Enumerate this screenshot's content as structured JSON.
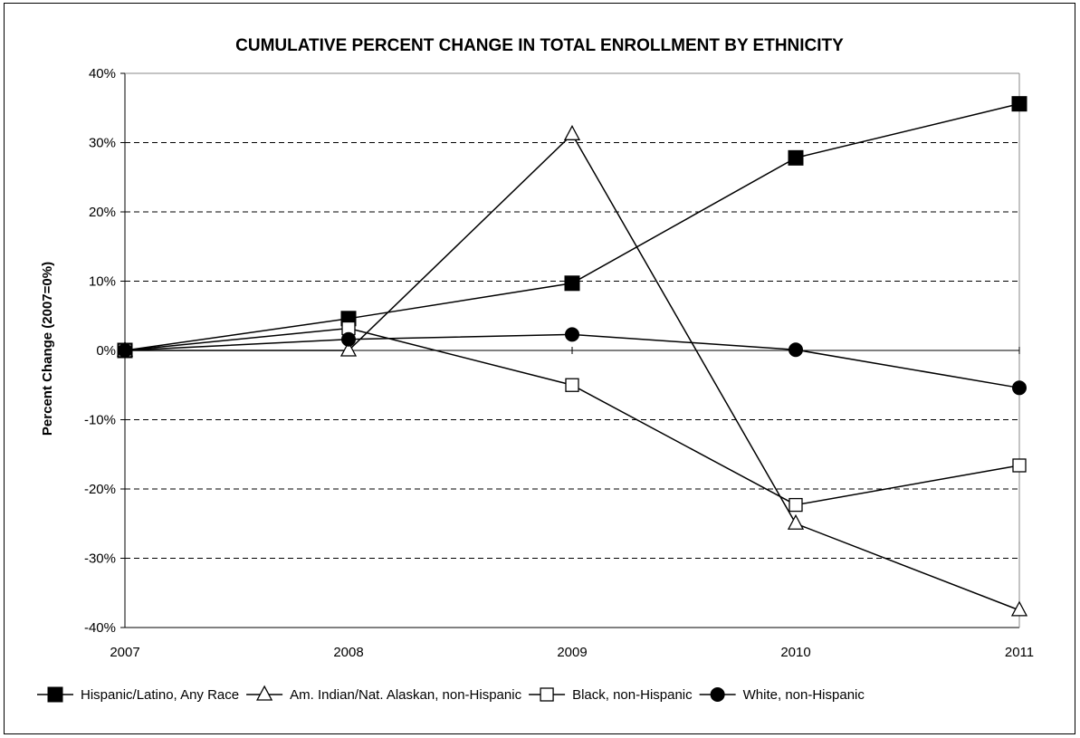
{
  "chart_data": {
    "type": "line",
    "title": "CUMULATIVE PERCENT CHANGE IN TOTAL ENROLLMENT BY ETHNICITY",
    "ylabel": "Percent Change (2007=0%)",
    "x": [
      "2007",
      "2008",
      "2009",
      "2010",
      "2011"
    ],
    "y_ticks": [
      "-40%",
      "-30%",
      "-20%",
      "-10%",
      "0%",
      "10%",
      "20%",
      "30%",
      "40%"
    ],
    "ylim": [
      -40,
      40
    ],
    "grid": "horizontal dashed",
    "legend_position": "bottom",
    "series": [
      {
        "name": "Hispanic/Latino, Any Race",
        "marker": "filled-square",
        "values": [
          0,
          4.6,
          9.7,
          27.8,
          35.6
        ]
      },
      {
        "name": "Am. Indian/Nat. Alaskan, non-Hispanic",
        "marker": "open-triangle",
        "values": [
          0,
          0,
          31.2,
          -25.0,
          -37.5
        ]
      },
      {
        "name": "Black, non-Hispanic",
        "marker": "open-square",
        "values": [
          0,
          3.2,
          -5.0,
          -22.3,
          -16.6
        ]
      },
      {
        "name": "White, non-Hispanic",
        "marker": "filled-circle",
        "values": [
          0,
          1.6,
          2.3,
          0.1,
          -5.4
        ]
      }
    ]
  }
}
